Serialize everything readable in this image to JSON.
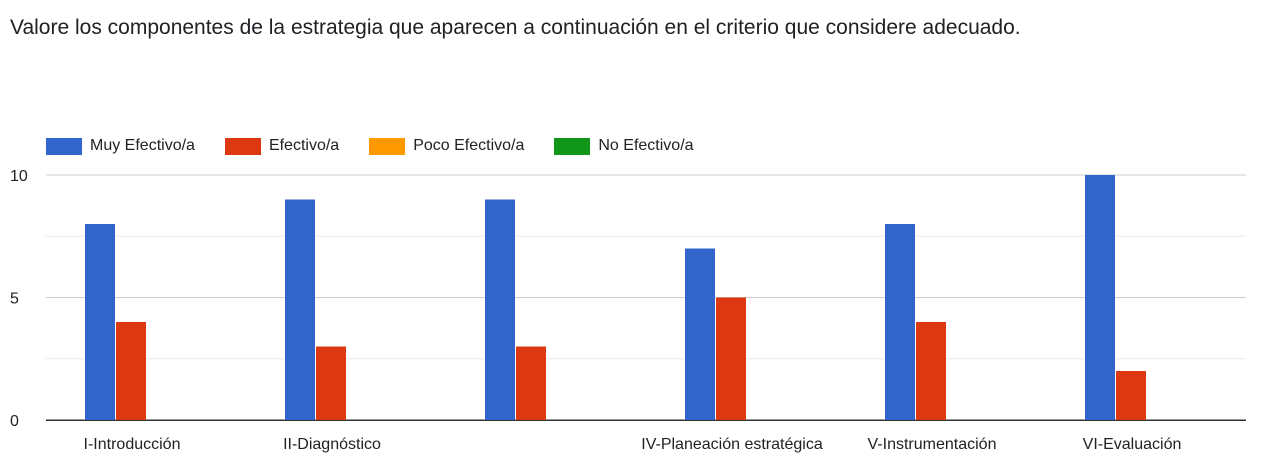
{
  "question": "Valore los componentes de la estrategia que aparecen a continuación en el criterio que considere adecuado.",
  "legend": [
    {
      "label": "Muy Efectivo/a",
      "color": "#3366cc"
    },
    {
      "label": "Efectivo/a",
      "color": "#dc3912"
    },
    {
      "label": "Poco Efectivo/a",
      "color": "#ff9900"
    },
    {
      "label": "No Efectivo/a",
      "color": "#109618"
    }
  ],
  "chart_data": {
    "type": "bar",
    "title": "",
    "xlabel": "",
    "ylabel": "",
    "ylim": [
      0,
      10
    ],
    "yticks": [
      0,
      5,
      10
    ],
    "grid": true,
    "legend_position": "top-left",
    "categories": [
      "I-Introducción",
      "II-Diagnóstico",
      "",
      "IV-Planeación estratégica",
      "V-Instrumentación",
      "VI-Evaluación"
    ],
    "series": [
      {
        "name": "Muy Efectivo/a",
        "color": "#3366cc",
        "values": [
          8,
          9,
          9,
          7,
          8,
          10
        ]
      },
      {
        "name": "Efectivo/a",
        "color": "#dc3912",
        "values": [
          4,
          3,
          3,
          5,
          4,
          2
        ]
      },
      {
        "name": "Poco Efectivo/a",
        "color": "#ff9900",
        "values": [
          0,
          0,
          0,
          0,
          0,
          0
        ]
      },
      {
        "name": "No Efectivo/a",
        "color": "#109618",
        "values": [
          0,
          0,
          0,
          0,
          0,
          0
        ]
      }
    ]
  }
}
